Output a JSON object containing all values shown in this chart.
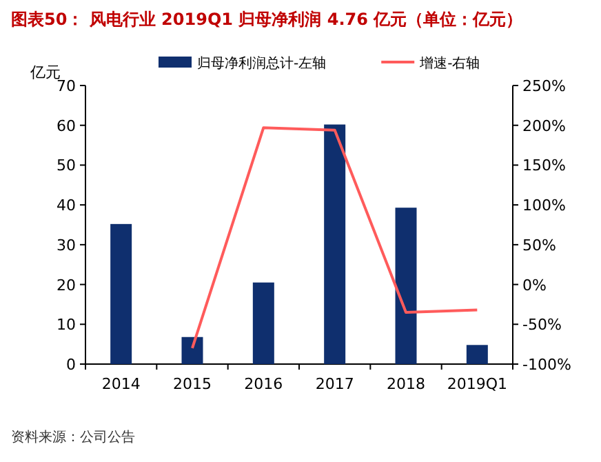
{
  "chart_data": {
    "type": "bar",
    "title": "图表50：  风电行业 2019Q1 归母净利润 4.76 亿元（单位：亿元）",
    "ylabel": "亿元",
    "categories": [
      "2014",
      "2015",
      "2016",
      "2017",
      "2018",
      "2019Q1"
    ],
    "series": [
      {
        "name": "归母净利润总计-左轴",
        "color": "#0f2f6e",
        "values": [
          35.2,
          6.8,
          20.5,
          60.2,
          39.3,
          4.8
        ]
      },
      {
        "name": "增速-右轴",
        "type": "line",
        "axis": "y2",
        "color": "#ff5b5b",
        "values": [
          null,
          -80,
          197,
          194,
          -35,
          -32
        ]
      }
    ],
    "ylim": [
      0,
      70
    ],
    "yticks": [
      0,
      10,
      20,
      30,
      40,
      50,
      60,
      70
    ],
    "y2lim": [
      -100,
      250
    ],
    "y2ticks": [
      {
        "value": -100,
        "label": "-100%"
      },
      {
        "value": -50,
        "label": "-50%"
      },
      {
        "value": 0,
        "label": "0%"
      },
      {
        "value": 50,
        "label": "50%"
      },
      {
        "value": 100,
        "label": "100%"
      },
      {
        "value": 150,
        "label": "150%"
      },
      {
        "value": 200,
        "label": "200%"
      },
      {
        "value": 250,
        "label": "250%"
      }
    ],
    "legend": "top",
    "grid": false,
    "marker": "none",
    "annotations": [
      "资料来源：公司公告"
    ]
  }
}
